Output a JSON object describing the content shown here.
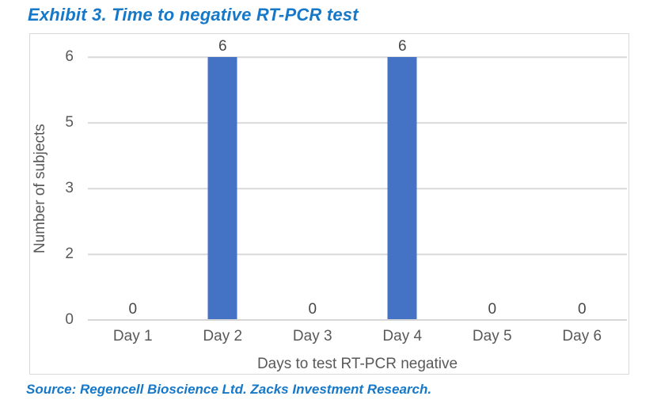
{
  "page": {
    "title_label": "Exhibit 3. Time to negative RT-PCR test",
    "source_note": "Source: Regencell Bioscience Ltd. Zacks Investment Research."
  },
  "colors": {
    "title_blue": "#1678C8",
    "bar_fill": "#4472C4",
    "gridline": "#D9D9D9",
    "axis_text": "#595959",
    "data_label_text": "#474747",
    "chart_border": "#D9D9D9"
  },
  "chart_data": {
    "type": "bar",
    "title": "Exhibit 3. Time to negative RT-PCR test",
    "categories": [
      "Day 1",
      "Day 2",
      "Day 3",
      "Day 4",
      "Day 5",
      "Day 6"
    ],
    "values": [
      0,
      6,
      0,
      6,
      0,
      0
    ],
    "xlabel": "Days to test RT-PCR negative",
    "ylabel": "Number of subjects",
    "ylim": [
      0,
      6
    ],
    "ytick_labels_top_to_bottom": [
      "6",
      "5",
      "3",
      "2",
      "0"
    ],
    "data_labels_shown": true,
    "grid": "horizontal",
    "legend": "none",
    "bar_color": "#4472C4"
  }
}
